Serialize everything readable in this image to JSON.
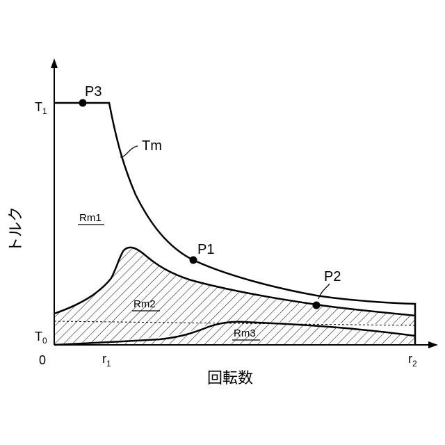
{
  "y_axis_title": "トルク",
  "x_axis_title": "回転数",
  "origin_label": "0",
  "y_ticks": [
    {
      "base": "T",
      "sub": "1"
    },
    {
      "base": "T",
      "sub": "0"
    }
  ],
  "x_ticks": [
    {
      "base": "r",
      "sub": "1"
    },
    {
      "base": "r",
      "sub": "2"
    }
  ],
  "curve_label": "Tm",
  "points": {
    "p1": "P1",
    "p2": "P2",
    "p3": "P3"
  },
  "regions": {
    "rm1": "Rm1",
    "rm2": "Rm2",
    "rm3": "Rm3"
  },
  "colors": {
    "ink": "#000000",
    "background": "#ffffff"
  }
}
